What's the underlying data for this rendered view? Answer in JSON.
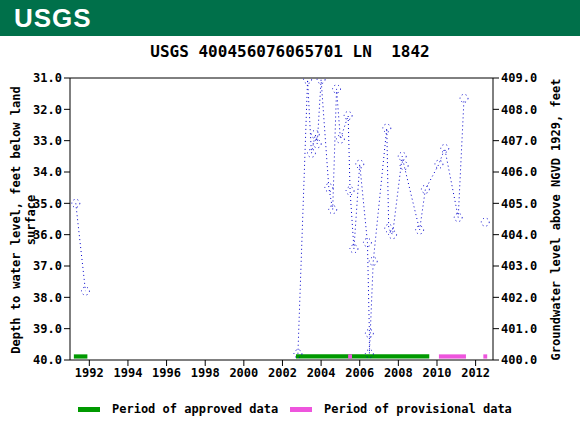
{
  "logo": "USGS",
  "chart_data": {
    "type": "line",
    "title": "USGS 400456076065701 LN  1842",
    "ylabel": "Depth to water level, feet below land surface",
    "y2label": "Groundwater level above NGVD 1929, feet",
    "xlim": [
      1991,
      2012.9
    ],
    "xticks": [
      1992,
      1994,
      1996,
      1998,
      2000,
      2002,
      2004,
      2006,
      2008,
      2010,
      2012
    ],
    "ylim": [
      31,
      40
    ],
    "yticks": [
      {
        "value": 31,
        "label": "31.0"
      },
      {
        "value": 32,
        "label": "32.0"
      },
      {
        "value": 33,
        "label": "33.0"
      },
      {
        "value": 34,
        "label": "34.0"
      },
      {
        "value": 35,
        "label": "35.0"
      },
      {
        "value": 36,
        "label": "36.0"
      },
      {
        "value": 37,
        "label": "37.0"
      },
      {
        "value": 38,
        "label": "38.0"
      },
      {
        "value": 39,
        "label": "39.0"
      },
      {
        "value": 40,
        "label": "40.0"
      }
    ],
    "y2lim": [
      400,
      409
    ],
    "y2ticks": [
      {
        "value": 400,
        "label": "400.0"
      },
      {
        "value": 401,
        "label": "401.0"
      },
      {
        "value": 402,
        "label": "402.0"
      },
      {
        "value": 403,
        "label": "403.0"
      },
      {
        "value": 404,
        "label": "404.0"
      },
      {
        "value": 405,
        "label": "405.0"
      },
      {
        "value": 406,
        "label": "406.0"
      },
      {
        "value": 407,
        "label": "407.0"
      },
      {
        "value": 408,
        "label": "408.0"
      },
      {
        "value": 409,
        "label": "409.0"
      }
    ],
    "grid": false,
    "color": "#0000cc",
    "marker": "circle",
    "line_style": "dotted",
    "x": [
      1991.3,
      1991.8,
      null,
      2002.8,
      2003.3,
      2003.5,
      2003.7,
      2003.8,
      2004.0,
      2004.4,
      2004.6,
      2004.8,
      2005.0,
      2005.4,
      2005.5,
      2005.7,
      2006.0,
      2006.4,
      2006.5,
      2006.5,
      2006.7,
      2007.4,
      2007.5,
      2007.7,
      2008.2,
      2008.3,
      2009.1,
      2009.4,
      2010.1,
      2010.4,
      2011.1,
      2011.4,
      null,
      2012.5
    ],
    "values": [
      35.0,
      37.8,
      null,
      39.8,
      31.05,
      33.4,
      32.8,
      33.1,
      31.05,
      34.5,
      35.2,
      31.35,
      32.95,
      32.2,
      34.6,
      36.45,
      33.75,
      36.25,
      39.15,
      39.8,
      36.85,
      32.6,
      35.8,
      36.0,
      33.5,
      33.8,
      35.85,
      34.55,
      33.75,
      33.25,
      35.45,
      31.65,
      null,
      35.6
    ],
    "periods": [
      {
        "name": "Period of approved data",
        "color": "#009900",
        "ranges": [
          [
            1991.2,
            1991.9
          ],
          [
            2002.7,
            2009.6
          ]
        ]
      },
      {
        "name": "Period of provisional data",
        "color": "#ee55dd",
        "ranges": [
          [
            2005.4,
            2005.6
          ],
          [
            2010.1,
            2011.5
          ],
          [
            2012.4,
            2012.6
          ]
        ]
      }
    ]
  }
}
